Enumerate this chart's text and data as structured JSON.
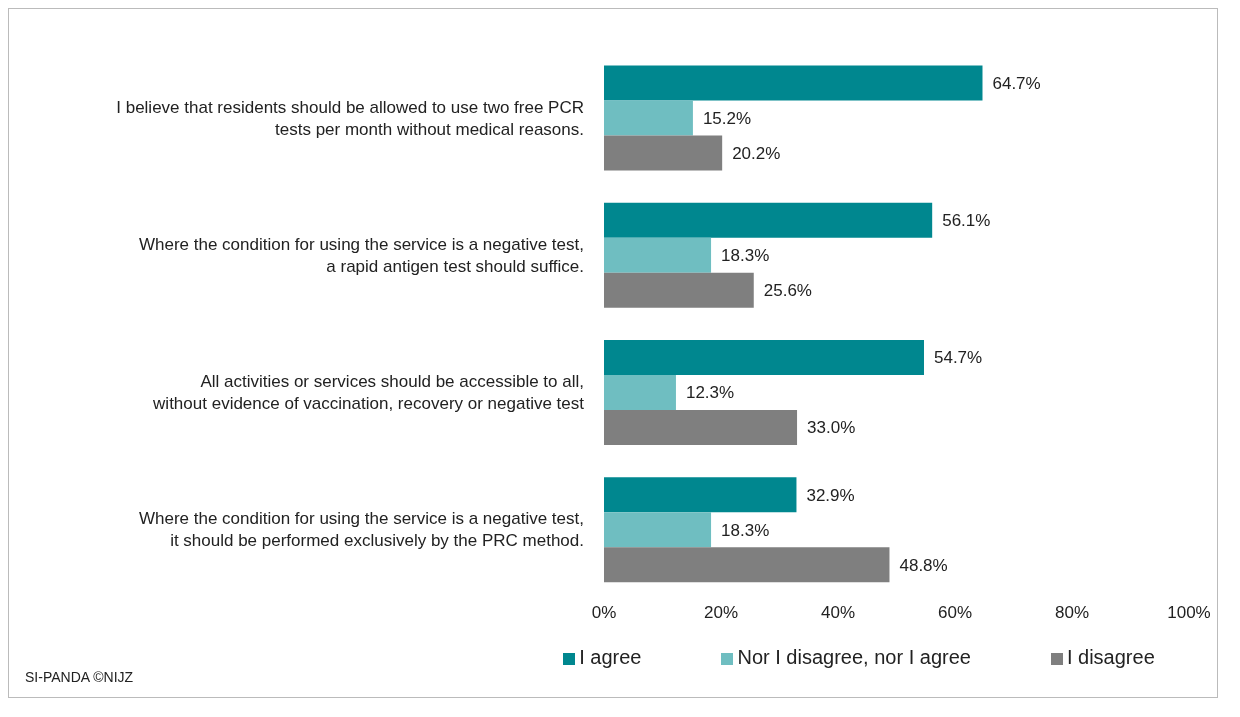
{
  "chart_data": {
    "type": "bar",
    "orientation": "horizontal",
    "categories": [
      "I believe that residents should be allowed to use two free PCR tests per month without medical reasons.",
      "Where the condition for using the service is a negative test, a rapid antigen test should suffice.",
      "All activities or services should be accessible to all, without evidence of vaccination, recovery or negative test",
      "Where the condition for using the service is a negative test, it should be performed exclusively by the PRC method."
    ],
    "series": [
      {
        "name": "I agree",
        "color": "#00878f",
        "values": [
          64.7,
          56.1,
          54.7,
          32.9
        ],
        "value_labels": [
          "64.7%",
          "56.1%",
          "54.7%",
          "32.9%"
        ]
      },
      {
        "name": "Nor I disagree, nor I agree",
        "color": "#6fbec1",
        "values": [
          15.2,
          18.3,
          12.3,
          18.3
        ],
        "value_labels": [
          "15.2%",
          "18.3%",
          "12.3%",
          "18.3%"
        ]
      },
      {
        "name": "I disagree",
        "color": "#7f7f7f",
        "values": [
          20.2,
          25.6,
          33.0,
          48.8
        ],
        "value_labels": [
          "20.2%",
          "25.6%",
          "33.0%",
          "48.8%"
        ]
      }
    ],
    "xlim": [
      0,
      100
    ],
    "xticks": [
      {
        "value": 0,
        "label": "0%"
      },
      {
        "value": 20,
        "label": "20%"
      },
      {
        "value": 40,
        "label": "40%"
      },
      {
        "value": 60,
        "label": "60%"
      },
      {
        "value": 80,
        "label": "80%"
      },
      {
        "value": 100,
        "label": "100%"
      }
    ],
    "grid": false,
    "legend": "bottom",
    "annotations": [
      "SI-PANDA ©NIJZ"
    ]
  }
}
